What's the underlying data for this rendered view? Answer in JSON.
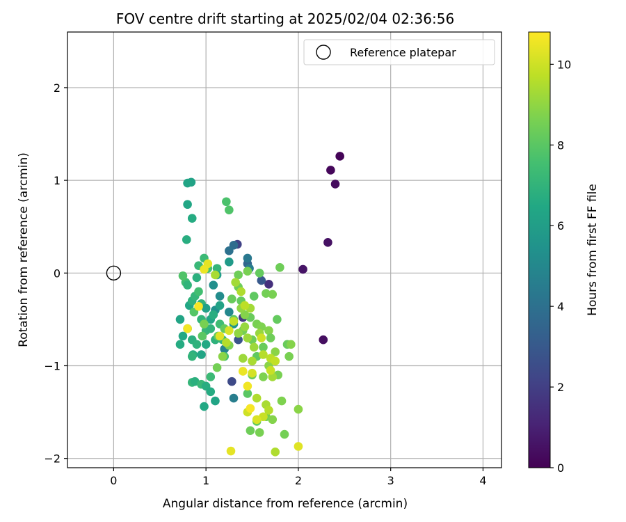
{
  "chart_data": {
    "type": "scatter",
    "title": "FOV centre drift starting at 2025/02/04 02:36:56",
    "xlabel": "Angular distance from reference (arcmin)",
    "ylabel": "Rotation from reference (arcmin)",
    "xlim": [
      -0.5,
      4.2
    ],
    "ylim": [
      -2.1,
      2.6
    ],
    "xticks": [
      0,
      1,
      2,
      3,
      4
    ],
    "xtick_labels": [
      "0",
      "1",
      "2",
      "3",
      "4"
    ],
    "yticks": [
      -2,
      -1,
      0,
      1,
      2
    ],
    "ytick_labels": [
      "−2",
      "−1",
      "0",
      "1",
      "2"
    ],
    "grid": true,
    "legend": {
      "position": "top-right",
      "label": "Reference platepar"
    },
    "colorbar": {
      "label": "Hours from first FF file",
      "colormap": "viridis",
      "range": [
        0,
        10.8
      ],
      "ticks": [
        0,
        2,
        4,
        6,
        8,
        10
      ],
      "tick_labels": [
        "0",
        "2",
        "4",
        "6",
        "8",
        "10"
      ]
    },
    "reference_point": {
      "x": 0,
      "y": 0
    },
    "points": [
      {
        "x": 2.45,
        "y": 1.26,
        "h": 0.1
      },
      {
        "x": 2.35,
        "y": 1.11,
        "h": 0.2
      },
      {
        "x": 2.4,
        "y": 0.96,
        "h": 0.3
      },
      {
        "x": 2.32,
        "y": 0.33,
        "h": 0.5
      },
      {
        "x": 2.05,
        "y": 0.04,
        "h": 0.6
      },
      {
        "x": 2.27,
        "y": -0.72,
        "h": 0.4
      },
      {
        "x": 1.68,
        "y": -0.12,
        "h": 1.5
      },
      {
        "x": 1.34,
        "y": 0.31,
        "h": 2.1
      },
      {
        "x": 1.28,
        "y": -1.17,
        "h": 2.4
      },
      {
        "x": 1.4,
        "y": -0.48,
        "h": 1.8
      },
      {
        "x": 1.35,
        "y": -0.72,
        "h": 2.8
      },
      {
        "x": 1.6,
        "y": -0.08,
        "h": 3.0
      },
      {
        "x": 1.45,
        "y": 0.1,
        "h": 3.5
      },
      {
        "x": 1.3,
        "y": 0.3,
        "h": 3.8
      },
      {
        "x": 1.25,
        "y": 0.24,
        "h": 4.0
      },
      {
        "x": 1.45,
        "y": 0.16,
        "h": 4.3
      },
      {
        "x": 1.47,
        "y": 0.05,
        "h": 4.5
      },
      {
        "x": 1.3,
        "y": -1.35,
        "h": 4.6
      },
      {
        "x": 1.2,
        "y": -0.82,
        "h": 4.8
      },
      {
        "x": 1.25,
        "y": -0.42,
        "h": 5.0
      },
      {
        "x": 1.15,
        "y": -0.25,
        "h": 5.2
      },
      {
        "x": 1.08,
        "y": -0.13,
        "h": 5.3
      },
      {
        "x": 1.1,
        "y": -0.4,
        "h": 5.4
      },
      {
        "x": 1.3,
        "y": -0.55,
        "h": 5.6
      },
      {
        "x": 1.25,
        "y": 0.12,
        "h": 5.8
      },
      {
        "x": 0.84,
        "y": 0.98,
        "h": 6.2
      },
      {
        "x": 0.8,
        "y": 0.97,
        "h": 6.3
      },
      {
        "x": 0.8,
        "y": 0.74,
        "h": 6.4
      },
      {
        "x": 0.85,
        "y": 0.59,
        "h": 6.6
      },
      {
        "x": 0.79,
        "y": 0.36,
        "h": 6.7
      },
      {
        "x": 0.72,
        "y": -0.5,
        "h": 6.3
      },
      {
        "x": 0.75,
        "y": -0.68,
        "h": 6.5
      },
      {
        "x": 0.72,
        "y": -0.77,
        "h": 6.6
      },
      {
        "x": 0.8,
        "y": -0.6,
        "h": 6.5
      },
      {
        "x": 0.85,
        "y": -0.72,
        "h": 6.8
      },
      {
        "x": 0.9,
        "y": -0.77,
        "h": 6.9
      },
      {
        "x": 0.95,
        "y": -0.5,
        "h": 7.0
      },
      {
        "x": 1.0,
        "y": -0.62,
        "h": 7.1
      },
      {
        "x": 1.05,
        "y": -0.5,
        "h": 6.4
      },
      {
        "x": 1.0,
        "y": -0.77,
        "h": 6.5
      },
      {
        "x": 1.1,
        "y": -0.72,
        "h": 6.9
      },
      {
        "x": 0.86,
        "y": -0.88,
        "h": 6.7
      },
      {
        "x": 0.85,
        "y": -0.9,
        "h": 7.0
      },
      {
        "x": 0.95,
        "y": -0.88,
        "h": 6.3
      },
      {
        "x": 0.85,
        "y": -1.18,
        "h": 7.1
      },
      {
        "x": 0.88,
        "y": -1.17,
        "h": 6.8
      },
      {
        "x": 0.95,
        "y": -1.2,
        "h": 7.2
      },
      {
        "x": 1.0,
        "y": -1.22,
        "h": 6.7
      },
      {
        "x": 1.05,
        "y": -1.28,
        "h": 6.6
      },
      {
        "x": 1.1,
        "y": -1.38,
        "h": 6.3
      },
      {
        "x": 0.98,
        "y": -1.44,
        "h": 6.5
      },
      {
        "x": 1.05,
        "y": -1.12,
        "h": 7.3
      },
      {
        "x": 0.78,
        "y": -0.1,
        "h": 7.4
      },
      {
        "x": 0.8,
        "y": -0.13,
        "h": 7.0
      },
      {
        "x": 0.82,
        "y": -0.35,
        "h": 6.4
      },
      {
        "x": 0.85,
        "y": -0.3,
        "h": 6.9
      },
      {
        "x": 0.88,
        "y": -0.25,
        "h": 7.1
      },
      {
        "x": 0.9,
        "y": -0.05,
        "h": 6.8
      },
      {
        "x": 0.92,
        "y": -0.2,
        "h": 7.5
      },
      {
        "x": 0.92,
        "y": 0.08,
        "h": 7.2
      },
      {
        "x": 0.95,
        "y": -0.33,
        "h": 7.0
      },
      {
        "x": 0.98,
        "y": 0.16,
        "h": 7.3
      },
      {
        "x": 0.98,
        "y": -0.55,
        "h": 6.6
      },
      {
        "x": 1.02,
        "y": 0.05,
        "h": 7.6
      },
      {
        "x": 1.05,
        "y": -0.6,
        "h": 7.0
      },
      {
        "x": 1.08,
        "y": -0.45,
        "h": 6.7
      },
      {
        "x": 1.12,
        "y": 0.05,
        "h": 7.1
      },
      {
        "x": 1.15,
        "y": -0.55,
        "h": 7.4
      },
      {
        "x": 1.18,
        "y": -0.72,
        "h": 7.2
      },
      {
        "x": 1.2,
        "y": -0.9,
        "h": 7.6
      },
      {
        "x": 1.22,
        "y": 0.77,
        "h": 7.7
      },
      {
        "x": 1.25,
        "y": 0.68,
        "h": 7.8
      },
      {
        "x": 1.0,
        "y": -0.38,
        "h": 6.1
      },
      {
        "x": 1.12,
        "y": -0.02,
        "h": 6.0
      },
      {
        "x": 1.15,
        "y": -0.35,
        "h": 6.2
      },
      {
        "x": 0.75,
        "y": -0.03,
        "h": 7.8
      },
      {
        "x": 0.87,
        "y": -0.42,
        "h": 7.9
      },
      {
        "x": 0.96,
        "y": -0.68,
        "h": 8.0
      },
      {
        "x": 1.13,
        "y": -0.68,
        "h": 8.1
      },
      {
        "x": 1.2,
        "y": -0.6,
        "h": 8.2
      },
      {
        "x": 1.28,
        "y": -0.28,
        "h": 8.3
      },
      {
        "x": 1.3,
        "y": -0.5,
        "h": 8.0
      },
      {
        "x": 1.35,
        "y": -0.15,
        "h": 8.4
      },
      {
        "x": 1.38,
        "y": -0.3,
        "h": 8.2
      },
      {
        "x": 1.4,
        "y": -0.62,
        "h": 8.5
      },
      {
        "x": 1.45,
        "y": 0.02,
        "h": 8.6
      },
      {
        "x": 1.48,
        "y": -0.48,
        "h": 8.3
      },
      {
        "x": 1.5,
        "y": -0.72,
        "h": 8.4
      },
      {
        "x": 1.52,
        "y": -0.25,
        "h": 8.1
      },
      {
        "x": 1.55,
        "y": -0.55,
        "h": 8.6
      },
      {
        "x": 1.58,
        "y": 0.0,
        "h": 8.2
      },
      {
        "x": 1.6,
        "y": -0.58,
        "h": 8.7
      },
      {
        "x": 1.62,
        "y": -0.8,
        "h": 8.3
      },
      {
        "x": 1.65,
        "y": -0.22,
        "h": 8.5
      },
      {
        "x": 1.68,
        "y": -0.62,
        "h": 8.8
      },
      {
        "x": 1.7,
        "y": -0.7,
        "h": 8.4
      },
      {
        "x": 1.72,
        "y": -0.23,
        "h": 8.6
      },
      {
        "x": 1.75,
        "y": -0.85,
        "h": 8.9
      },
      {
        "x": 1.77,
        "y": -0.5,
        "h": 8.2
      },
      {
        "x": 1.8,
        "y": 0.06,
        "h": 8.4
      },
      {
        "x": 1.82,
        "y": -1.38,
        "h": 8.7
      },
      {
        "x": 1.85,
        "y": -1.74,
        "h": 8.5
      },
      {
        "x": 1.88,
        "y": -0.77,
        "h": 8.3
      },
      {
        "x": 1.9,
        "y": -0.9,
        "h": 8.6
      },
      {
        "x": 1.92,
        "y": -0.77,
        "h": 8.8
      },
      {
        "x": 2.0,
        "y": -1.47,
        "h": 8.9
      },
      {
        "x": 1.45,
        "y": -1.3,
        "h": 8.0
      },
      {
        "x": 1.48,
        "y": -1.7,
        "h": 8.4
      },
      {
        "x": 1.55,
        "y": -1.6,
        "h": 8.2
      },
      {
        "x": 1.58,
        "y": -1.72,
        "h": 8.6
      },
      {
        "x": 1.65,
        "y": -1.55,
        "h": 8.5
      },
      {
        "x": 1.72,
        "y": -1.58,
        "h": 8.8
      },
      {
        "x": 1.5,
        "y": -1.1,
        "h": 8.3
      },
      {
        "x": 1.55,
        "y": -0.9,
        "h": 8.1
      },
      {
        "x": 1.62,
        "y": -1.12,
        "h": 8.7
      },
      {
        "x": 1.68,
        "y": -1.0,
        "h": 8.9
      },
      {
        "x": 1.78,
        "y": -1.1,
        "h": 8.6
      },
      {
        "x": 1.35,
        "y": -0.02,
        "h": 8.4
      },
      {
        "x": 1.42,
        "y": -0.45,
        "h": 8.8
      },
      {
        "x": 1.25,
        "y": -0.78,
        "h": 8.7
      },
      {
        "x": 1.18,
        "y": -0.9,
        "h": 8.9
      },
      {
        "x": 1.12,
        "y": -1.02,
        "h": 8.5
      },
      {
        "x": 0.98,
        "y": -0.55,
        "h": 8.6
      },
      {
        "x": 1.38,
        "y": -0.38,
        "h": 9.0
      },
      {
        "x": 1.42,
        "y": -0.58,
        "h": 9.1
      },
      {
        "x": 1.45,
        "y": -0.7,
        "h": 9.2
      },
      {
        "x": 1.48,
        "y": -0.38,
        "h": 9.3
      },
      {
        "x": 1.5,
        "y": -0.95,
        "h": 9.4
      },
      {
        "x": 1.52,
        "y": -0.8,
        "h": 9.2
      },
      {
        "x": 1.55,
        "y": -1.35,
        "h": 9.5
      },
      {
        "x": 1.58,
        "y": -0.65,
        "h": 9.1
      },
      {
        "x": 1.62,
        "y": -0.88,
        "h": 9.6
      },
      {
        "x": 1.65,
        "y": -1.42,
        "h": 9.4
      },
      {
        "x": 1.7,
        "y": -0.92,
        "h": 9.7
      },
      {
        "x": 1.72,
        "y": -1.12,
        "h": 9.3
      },
      {
        "x": 1.75,
        "y": -0.95,
        "h": 9.8
      },
      {
        "x": 1.75,
        "y": -1.93,
        "h": 9.5
      },
      {
        "x": 1.68,
        "y": -1.48,
        "h": 9.6
      },
      {
        "x": 1.62,
        "y": -1.55,
        "h": 9.9
      },
      {
        "x": 1.45,
        "y": -1.5,
        "h": 10.0
      },
      {
        "x": 1.5,
        "y": -1.08,
        "h": 10.1
      },
      {
        "x": 1.32,
        "y": -0.1,
        "h": 9.3
      },
      {
        "x": 1.38,
        "y": -0.2,
        "h": 9.5
      },
      {
        "x": 1.42,
        "y": -0.35,
        "h": 9.7
      },
      {
        "x": 1.3,
        "y": -0.52,
        "h": 9.8
      },
      {
        "x": 1.25,
        "y": -0.62,
        "h": 10.2
      },
      {
        "x": 1.22,
        "y": -0.75,
        "h": 9.6
      },
      {
        "x": 1.15,
        "y": -0.68,
        "h": 10.3
      },
      {
        "x": 1.1,
        "y": -0.02,
        "h": 9.4
      },
      {
        "x": 1.02,
        "y": 0.1,
        "h": 10.4
      },
      {
        "x": 0.98,
        "y": 0.04,
        "h": 10.5
      },
      {
        "x": 0.8,
        "y": -0.6,
        "h": 10.6
      },
      {
        "x": 0.92,
        "y": -0.36,
        "h": 10.7
      },
      {
        "x": 1.4,
        "y": -1.06,
        "h": 10.5
      },
      {
        "x": 1.45,
        "y": -1.22,
        "h": 10.6
      },
      {
        "x": 1.48,
        "y": -1.46,
        "h": 10.7
      },
      {
        "x": 1.27,
        "y": -1.92,
        "h": 10.4
      },
      {
        "x": 2.0,
        "y": -1.87,
        "h": 10.3
      },
      {
        "x": 1.55,
        "y": -1.58,
        "h": 10.2
      },
      {
        "x": 1.6,
        "y": -0.7,
        "h": 10.0
      },
      {
        "x": 1.7,
        "y": -1.05,
        "h": 9.9
      },
      {
        "x": 1.35,
        "y": -0.65,
        "h": 9.0
      },
      {
        "x": 1.4,
        "y": -0.92,
        "h": 9.2
      }
    ]
  }
}
